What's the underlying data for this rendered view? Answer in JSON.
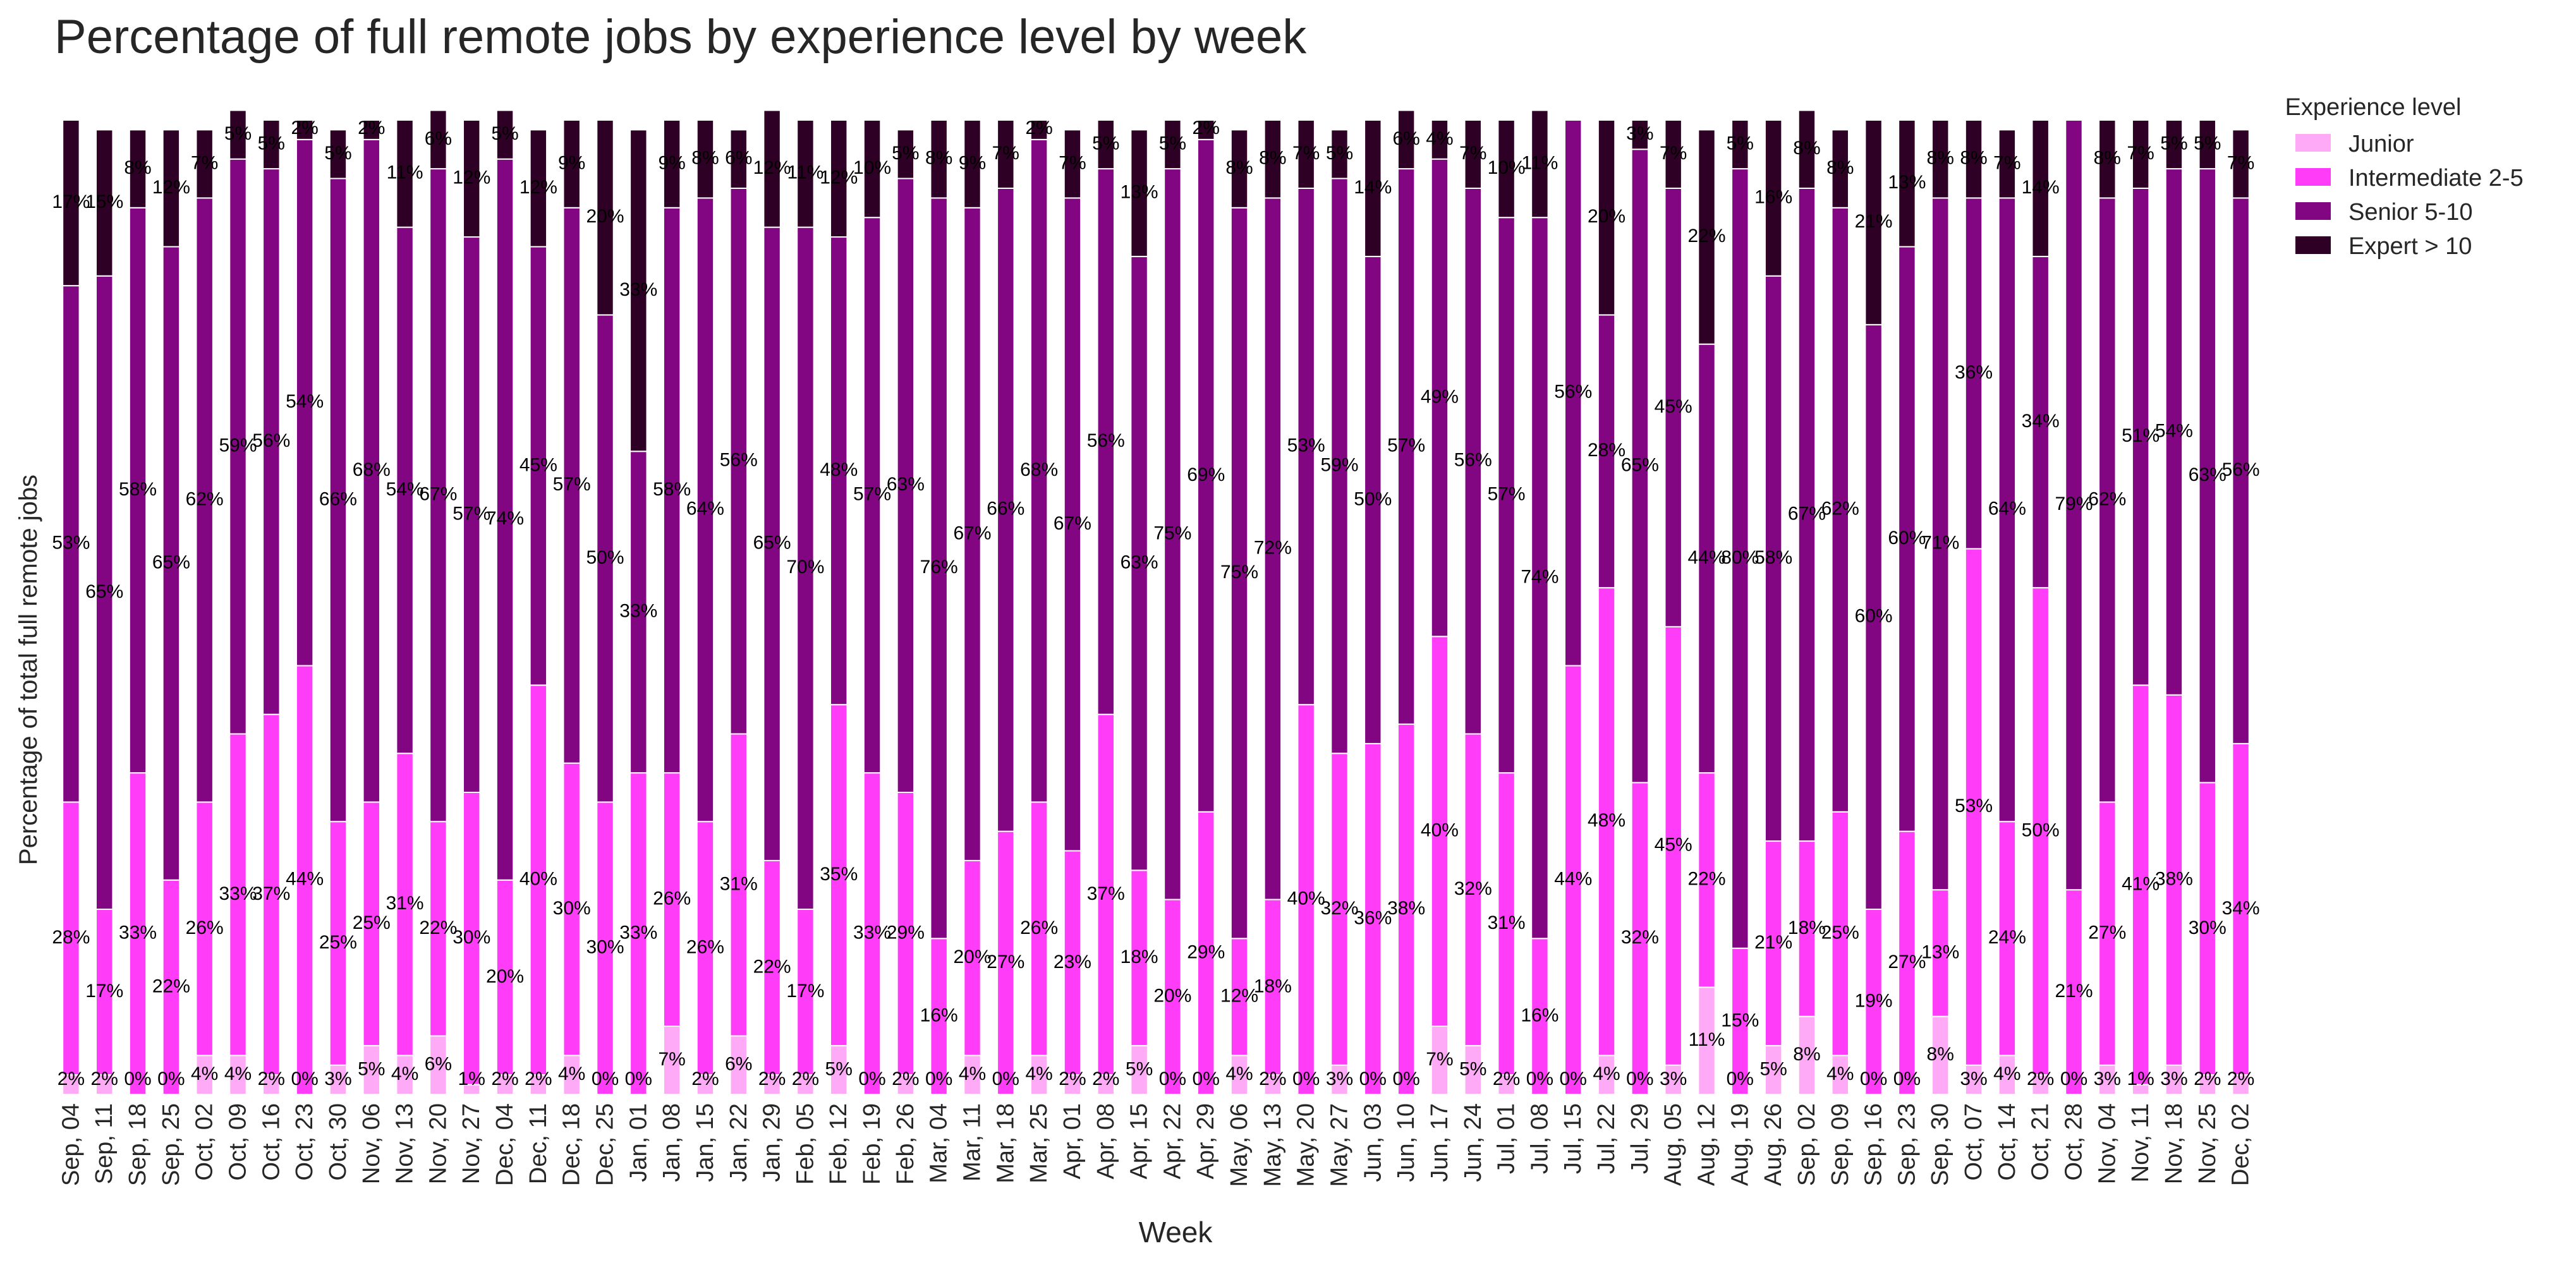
{
  "chart_data": {
    "type": "bar",
    "stacked": true,
    "title": "Percentage of full remote jobs by experience level by week",
    "xlabel": "Week",
    "ylabel": "Percentage of total full remote jobs",
    "ylim": [
      0,
      100
    ],
    "grid": false,
    "legend": {
      "title": "Experience level",
      "placement": "top-right, outside plot"
    },
    "categories": [
      "Sep, 04",
      "Sep, 11",
      "Sep, 18",
      "Sep, 25",
      "Oct, 02",
      "Oct, 09",
      "Oct, 16",
      "Oct, 23",
      "Oct, 30",
      "Nov, 06",
      "Nov, 13",
      "Nov, 20",
      "Nov, 27",
      "Dec, 04",
      "Dec, 11",
      "Dec, 18",
      "Dec, 25",
      "Jan, 01",
      "Jan, 08",
      "Jan, 15",
      "Jan, 22",
      "Jan, 29",
      "Feb, 05",
      "Feb, 12",
      "Feb, 19",
      "Feb, 26",
      "Mar, 04",
      "Mar, 11",
      "Mar, 18",
      "Mar, 25",
      "Apr, 01",
      "Apr, 08",
      "Apr, 15",
      "Apr, 22",
      "Apr, 29",
      "May, 06",
      "May, 13",
      "May, 20",
      "May, 27",
      "Jun, 03",
      "Jun, 10",
      "Jun, 17",
      "Jun, 24",
      "Jul, 01",
      "Jul, 08",
      "Jul, 15",
      "Jul, 22",
      "Jul, 29",
      "Aug, 05",
      "Aug, 12",
      "Aug, 19",
      "Aug, 26",
      "Sep, 02",
      "Sep, 09",
      "Sep, 16",
      "Sep, 23",
      "Sep, 30",
      "Oct, 07",
      "Oct, 14",
      "Oct, 21",
      "Oct, 28",
      "Nov, 04",
      "Nov, 11",
      "Nov, 18",
      "Nov, 25",
      "Dec, 02"
    ],
    "series": [
      {
        "name": "Junior",
        "color": "#ffaaf6",
        "values": [
          2,
          2,
          0,
          0,
          4,
          4,
          2,
          0,
          3,
          5,
          4,
          6,
          1,
          2,
          2,
          4,
          0,
          0,
          7,
          2,
          6,
          2,
          2,
          5,
          0,
          2,
          0,
          4,
          0,
          4,
          2,
          2,
          5,
          0,
          0,
          4,
          2,
          0,
          3,
          0,
          0,
          7,
          5,
          2,
          0,
          0,
          4,
          0,
          3,
          11,
          0,
          5,
          8,
          4,
          0,
          0,
          8,
          3,
          4,
          2,
          0,
          3,
          1,
          3,
          2,
          2
        ]
      },
      {
        "name": "Intermediate 2-5",
        "color": "#ff3df8",
        "values": [
          28,
          17,
          33,
          22,
          26,
          33,
          37,
          44,
          25,
          25,
          31,
          22,
          30,
          20,
          40,
          30,
          30,
          33,
          26,
          26,
          31,
          22,
          17,
          35,
          33,
          29,
          16,
          20,
          27,
          26,
          23,
          37,
          18,
          20,
          29,
          12,
          18,
          40,
          32,
          36,
          38,
          40,
          32,
          31,
          16,
          44,
          48,
          32,
          45,
          22,
          15,
          21,
          18,
          25,
          19,
          27,
          13,
          53,
          24,
          50,
          21,
          27,
          41,
          38,
          30,
          34
        ]
      },
      {
        "name": "Senior 5-10",
        "color": "#820682",
        "values": [
          53,
          65,
          58,
          65,
          62,
          59,
          56,
          54,
          66,
          68,
          54,
          67,
          57,
          74,
          45,
          57,
          50,
          33,
          58,
          64,
          56,
          65,
          70,
          48,
          57,
          63,
          76,
          67,
          66,
          68,
          67,
          56,
          63,
          75,
          69,
          75,
          72,
          53,
          59,
          50,
          57,
          49,
          56,
          57,
          74,
          56,
          28,
          65,
          45,
          44,
          80,
          58,
          67,
          62,
          60,
          60,
          71,
          36,
          64,
          34,
          79,
          62,
          51,
          54,
          63,
          56
        ]
      },
      {
        "name": "Expert > 10",
        "color": "#2f0025",
        "values": [
          17,
          15,
          8,
          12,
          7,
          5,
          5,
          2,
          5,
          2,
          11,
          6,
          12,
          5,
          12,
          9,
          20,
          33,
          9,
          8,
          6,
          12,
          11,
          12,
          10,
          5,
          8,
          9,
          7,
          2,
          7,
          5,
          13,
          5,
          2,
          8,
          8,
          7,
          5,
          14,
          6,
          4,
          7,
          10,
          11,
          0,
          20,
          3,
          7,
          22,
          5,
          16,
          8,
          8,
          21,
          13,
          8,
          8,
          7,
          14,
          0,
          8,
          7,
          5,
          5,
          7
        ]
      }
    ]
  }
}
